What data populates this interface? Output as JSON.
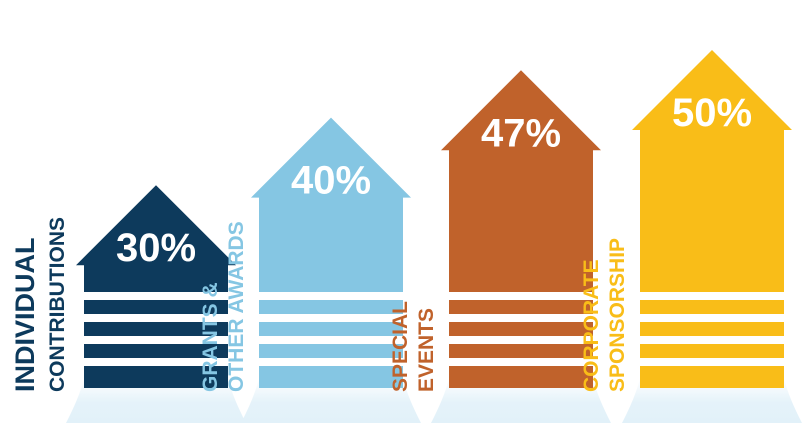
{
  "chart_data": {
    "type": "bar",
    "title": "",
    "xlabel": "",
    "ylabel": "",
    "categories": [
      "INDIVIDUAL CONTRIBUTIONS",
      "GRANTS & OTHER AWARDS",
      "SPECIAL EVENTS",
      "CORPORATE SPONSORSHIP"
    ],
    "values": [
      30,
      40,
      47,
      50
    ],
    "value_labels": [
      "30%",
      "40%",
      "47%",
      "50%"
    ],
    "annotations": [
      {
        "category": "CORPORATE SPONSORSHIP",
        "text": "*"
      }
    ],
    "ylim": [
      0,
      50
    ],
    "grid": false,
    "legend": "none"
  },
  "bars": [
    {
      "label_line1": "INDIVIDUAL",
      "label_line2": "CONTRIBUTIONS",
      "label_style": "big-small",
      "color": "#0d3a5c",
      "label_color": "#0d3a5c"
    },
    {
      "label_line1": "GRANTS &",
      "label_line2": "OTHER AWARDS",
      "label_style": "equal",
      "color": "#85c6e3",
      "label_color": "#85c6e3"
    },
    {
      "label_line1": "SPECIAL",
      "label_line2": "EVENTS",
      "label_style": "equal",
      "color": "#c0622b",
      "label_color": "#c0622b"
    },
    {
      "label_line1": "CORPORATE",
      "label_line2": "SPONSORSHIP",
      "label_style": "equal",
      "color": "#f9bd18",
      "label_color": "#f9bd18"
    }
  ],
  "colors": {
    "glow": "#e2f1f9",
    "background": "#ffffff"
  }
}
